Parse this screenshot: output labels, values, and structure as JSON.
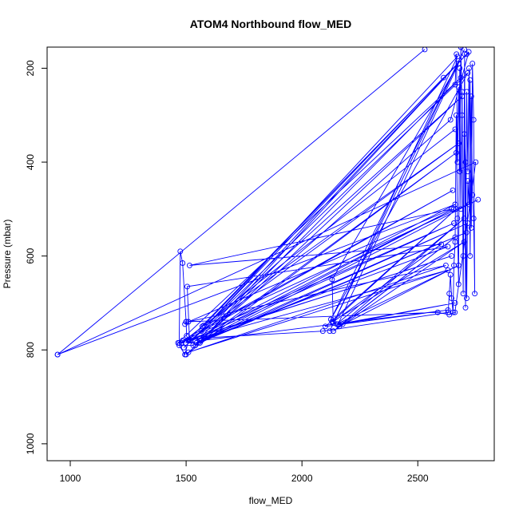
{
  "chart_data": {
    "type": "line",
    "title": "ATOM4 Northbound flow_MED",
    "xlabel": "flow_MED",
    "ylabel": "Pressure (mbar)",
    "xlim": [
      900,
      2830
    ],
    "ylim": [
      1036,
      155
    ],
    "y_reversed": true,
    "x_ticks": [
      "1000",
      "1500",
      "2000",
      "2500"
    ],
    "y_ticks": [
      "200",
      "400",
      "600",
      "800",
      "1000"
    ],
    "grid": false,
    "legend": "none",
    "series_color": "#0000ff",
    "marker": "open-circle",
    "series": [
      {
        "points": [
          [
            2661,
            235
          ],
          [
            2667,
            170
          ],
          [
            2671,
            400
          ],
          [
            2677,
            240
          ],
          [
            2681,
            420
          ],
          [
            2686,
            155
          ],
          [
            2691,
            300
          ],
          [
            2696,
            600
          ],
          [
            2702,
            170
          ],
          [
            2706,
            710
          ],
          [
            2711,
            250
          ],
          [
            2716,
            420
          ],
          [
            2721,
            200
          ],
          [
            2726,
            600
          ],
          [
            2731,
            260
          ],
          [
            2736,
            470
          ],
          [
            2741,
            520
          ],
          [
            2746,
            680
          ],
          [
            2741,
            310
          ],
          [
            2736,
            190
          ],
          [
            2731,
            540
          ],
          [
            2726,
            225
          ],
          [
            2721,
            490
          ],
          [
            2716,
            440
          ],
          [
            2711,
            690
          ],
          [
            2706,
            400
          ],
          [
            2701,
            340
          ],
          [
            2696,
            680
          ],
          [
            2691,
            250
          ],
          [
            2686,
            500
          ],
          [
            2681,
            200
          ],
          [
            2676,
            660
          ],
          [
            2671,
            520
          ],
          [
            2666,
            300
          ],
          [
            2661,
            570
          ],
          [
            2656,
            620
          ],
          [
            2652,
            720
          ],
          [
            2646,
            690
          ],
          [
            2641,
            640
          ],
          [
            2636,
            680
          ],
          [
            2631,
            720
          ],
          [
            2090,
            760
          ],
          [
            1560,
            775
          ],
          [
            2720,
            165
          ],
          [
            2641,
            310
          ],
          [
            1540,
            790
          ],
          [
            2666,
            380
          ],
          [
            1500,
            810
          ],
          [
            2691,
            260
          ],
          [
            1490,
            795
          ],
          [
            2716,
            210
          ],
          [
            2125,
            735
          ],
          [
            2701,
            160
          ],
          [
            2120,
            760
          ],
          [
            2671,
            175
          ],
          [
            1565,
            760
          ],
          [
            2611,
            220
          ],
          [
            1576,
            748
          ],
          [
            2661,
            330
          ],
          [
            1480,
            785
          ],
          [
            2651,
            460
          ],
          [
            1485,
            780
          ],
          [
            2656,
            530
          ],
          [
            1498,
            785
          ],
          [
            2711,
            170
          ],
          [
            1575,
            775
          ],
          [
            2686,
            220
          ],
          [
            1465,
            785
          ],
          [
            2646,
            600
          ],
          [
            1470,
            785
          ],
          [
            1475,
            590
          ],
          [
            1485,
            615
          ],
          [
            1500,
            740
          ],
          [
            1502,
            770
          ],
          [
            1510,
            780
          ],
          [
            1495,
            810
          ],
          [
            1470,
            790
          ],
          [
            1530,
            790
          ],
          [
            2710,
            550
          ],
          [
            1545,
            785
          ],
          [
            2655,
            500
          ],
          [
            1540,
            780
          ],
          [
            2630,
            580
          ],
          [
            1505,
            665
          ],
          [
            1515,
            780
          ],
          [
            2676,
            360
          ],
          [
            1570,
            750
          ],
          [
            2760,
            480
          ],
          [
            1560,
            785
          ],
          [
            2716,
            530
          ],
          [
            1565,
            780
          ],
          [
            2630,
            715
          ],
          [
            2101,
            750
          ],
          [
            2666,
            500
          ],
          [
            2130,
            740
          ],
          [
            2700,
            570
          ],
          [
            2136,
            760
          ],
          [
            2700,
            520
          ],
          [
            2150,
            745
          ],
          [
            2676,
            620
          ],
          [
            2161,
            750
          ],
          [
            2661,
            560
          ],
          [
            2176,
            745
          ],
          [
            2661,
            700
          ],
          [
            2156,
            745
          ],
          [
            2676,
            190
          ],
          [
            2130,
            650
          ],
          [
            2135,
            740
          ],
          [
            2601,
            575
          ],
          [
            1515,
            620
          ],
          [
            2646,
            500
          ],
          [
            1510,
            740
          ],
          [
            2621,
            620
          ],
          [
            1510,
            805
          ],
          [
            2630,
            630
          ],
          [
            1520,
            780
          ],
          [
            2661,
            490
          ],
          [
            945,
            810
          ],
          [
            2530,
            160
          ],
          [
            945,
            810
          ],
          [
            2750,
            400
          ],
          [
            2660,
            720
          ],
          [
            2636,
            725
          ],
          [
            2586,
            720
          ],
          [
            1500,
            740
          ],
          [
            1495,
            745
          ]
        ]
      }
    ]
  }
}
